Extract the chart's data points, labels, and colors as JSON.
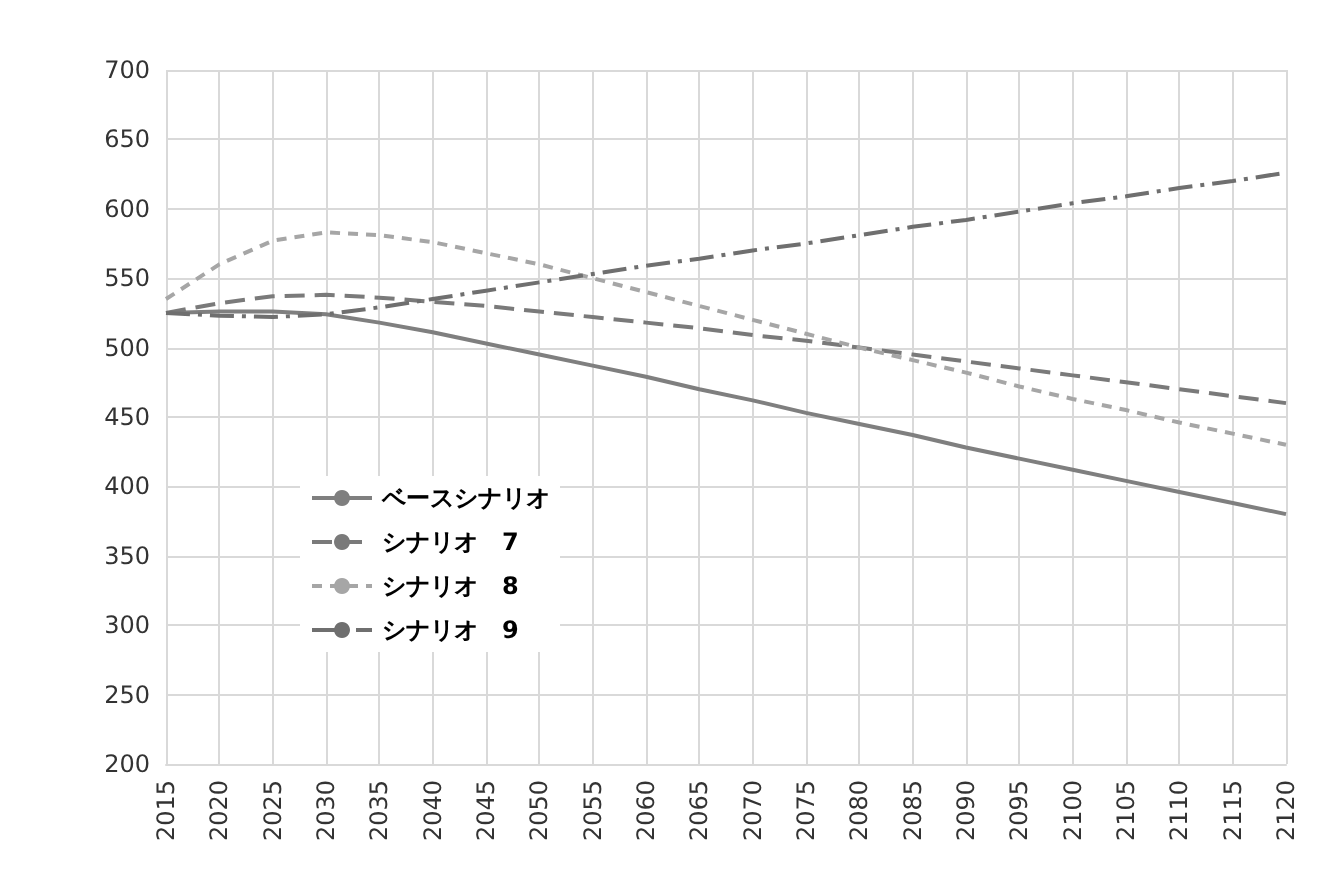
{
  "chart_data": {
    "type": "line",
    "x": [
      2015,
      2020,
      2025,
      2030,
      2035,
      2040,
      2045,
      2050,
      2055,
      2060,
      2065,
      2070,
      2075,
      2080,
      2085,
      2090,
      2095,
      2100,
      2105,
      2110,
      2115,
      2120
    ],
    "series": [
      {
        "name": "ベースシナリオ",
        "color": "#7f7f7f",
        "line_style": "solid",
        "values": [
          525,
          526,
          526,
          524,
          518,
          511,
          503,
          495,
          487,
          479,
          470,
          462,
          453,
          445,
          437,
          428,
          420,
          412,
          404,
          396,
          388,
          380
        ]
      },
      {
        "name": "シナリオ　7",
        "color": "#7a7a7a",
        "line_style": "dashed",
        "values": [
          525,
          532,
          537,
          538,
          536,
          533,
          530,
          526,
          522,
          518,
          514,
          509,
          505,
          500,
          495,
          490,
          485,
          480,
          475,
          470,
          465,
          460
        ]
      },
      {
        "name": "シナリオ　8",
        "color": "#a6a6a6",
        "line_style": "dotted",
        "values": [
          535,
          560,
          577,
          583,
          581,
          576,
          568,
          560,
          550,
          540,
          530,
          520,
          510,
          500,
          491,
          482,
          472,
          463,
          455,
          446,
          438,
          430
        ]
      },
      {
        "name": "シナリオ　9",
        "color": "#6f6f6f",
        "line_style": "dashdot",
        "values": [
          525,
          523,
          522,
          524,
          529,
          535,
          541,
          547,
          553,
          559,
          564,
          570,
          575,
          581,
          587,
          592,
          598,
          604,
          609,
          615,
          620,
          626
        ]
      }
    ],
    "xlim": [
      2015,
      2120
    ],
    "xticks": [
      2015,
      2020,
      2025,
      2030,
      2035,
      2040,
      2045,
      2050,
      2055,
      2060,
      2065,
      2070,
      2075,
      2080,
      2085,
      2090,
      2095,
      2100,
      2105,
      2110,
      2115,
      2120
    ],
    "ylim": [
      200,
      700
    ],
    "yticks": [
      200,
      250,
      300,
      350,
      400,
      450,
      500,
      550,
      600,
      650,
      700
    ],
    "grid": true,
    "legend": "left",
    "marker": "none"
  }
}
